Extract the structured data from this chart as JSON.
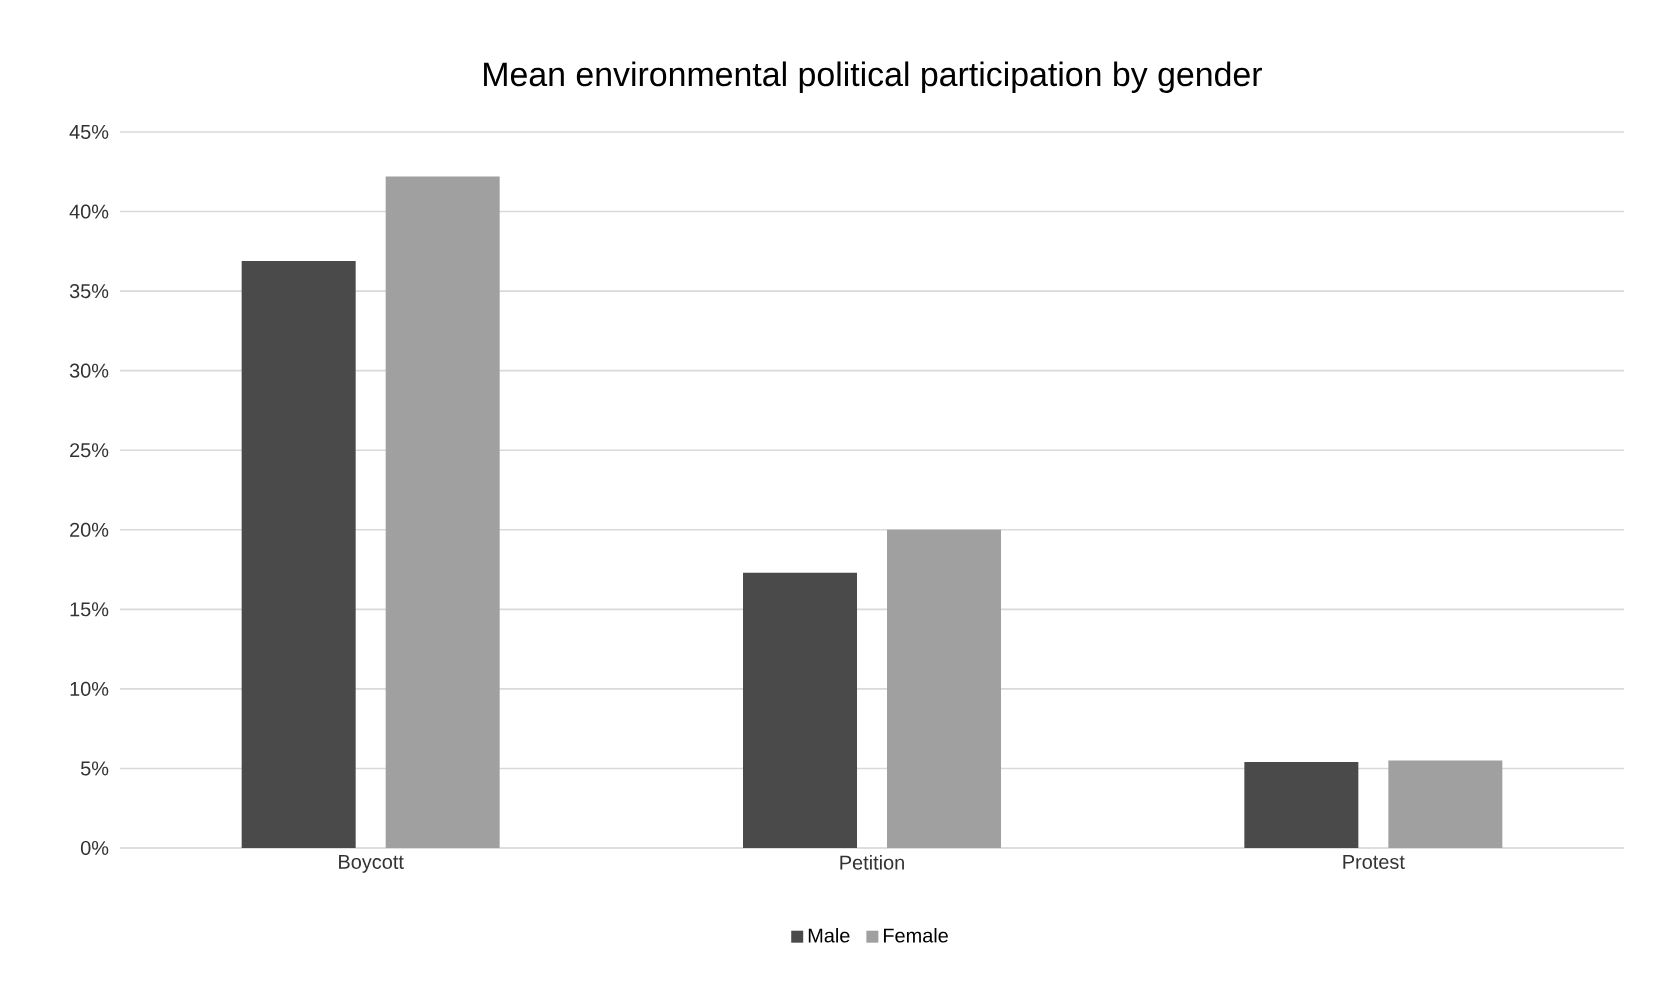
{
  "chart_data": {
    "type": "bar",
    "title": "Mean environmental political participation by gender",
    "categories": [
      "Boycott",
      "Petition",
      "Protest"
    ],
    "series": [
      {
        "name": "Male",
        "color": "#4a4a4a",
        "values": [
          36.9,
          17.3,
          5.4
        ]
      },
      {
        "name": "Female",
        "color": "#a0a0a0",
        "values": [
          42.2,
          20.0,
          5.5
        ]
      }
    ],
    "ylim": [
      0,
      45
    ],
    "yticks": [
      {
        "value": 0,
        "label": "0%"
      },
      {
        "value": 5,
        "label": "5%"
      },
      {
        "value": 10,
        "label": "10%"
      },
      {
        "value": 15,
        "label": "15%"
      },
      {
        "value": 20,
        "label": "20%"
      },
      {
        "value": 25,
        "label": "25%"
      },
      {
        "value": 30,
        "label": "30%"
      },
      {
        "value": 35,
        "label": "35%"
      },
      {
        "value": 40,
        "label": "40%"
      },
      {
        "value": 45,
        "label": "45%"
      }
    ],
    "grid": "y",
    "legend": "bottom"
  }
}
